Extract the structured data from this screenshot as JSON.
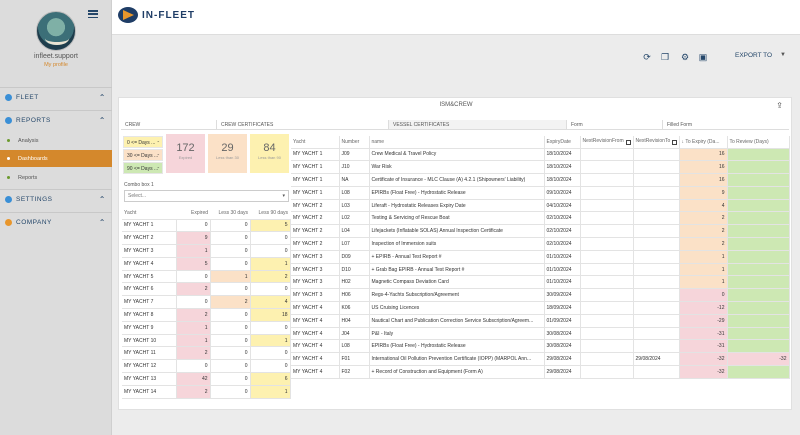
{
  "user": {
    "name": "infleet.support",
    "role": "My profile"
  },
  "app": {
    "title": "IN-FLEET"
  },
  "sidebar": [
    {
      "label": "FLEET",
      "color": "#3a8fd6"
    },
    {
      "label": "REPORTS",
      "color": "#3a8fd6"
    },
    {
      "label": "Analysis",
      "child": true
    },
    {
      "label": "Dashboards",
      "child": true,
      "active": true
    },
    {
      "label": "Reports",
      "child": true
    },
    {
      "label": "SETTINGS",
      "color": "#3a8fd6"
    },
    {
      "label": "COMPANY",
      "color": "#e8962c"
    }
  ],
  "toolbar": {
    "export_label": "EXPORT TO"
  },
  "panel": {
    "title": "ISM&CREW"
  },
  "tabs": [
    "CREW",
    "CREW CERTIFICATES",
    "VESSEL CERTIFICATES",
    "Form",
    "Filled Form"
  ],
  "filters": [
    "0 <= Days ...",
    "30 <= Days ...",
    "90 <= Days ..."
  ],
  "kpis": [
    {
      "value": "172",
      "label": "Expired"
    },
    {
      "value": "29",
      "label": "Less than 30"
    },
    {
      "value": "84",
      "label": "Less than 90"
    }
  ],
  "combo": {
    "label": "Combo box 1",
    "placeholder": "Select..."
  },
  "summary": {
    "headers": [
      "Yacht",
      "Expired",
      "Less 30 days",
      "Less 90 days"
    ],
    "rows": [
      [
        "MY YACHT 1",
        "0",
        "0",
        "5"
      ],
      [
        "MY YACHT 2",
        "9",
        "0",
        "0"
      ],
      [
        "MY YACHT 3",
        "1",
        "0",
        "0"
      ],
      [
        "MY YACHT 4",
        "5",
        "0",
        "1"
      ],
      [
        "MY YACHT 5",
        "0",
        "1",
        "2"
      ],
      [
        "MY YACHT 6",
        "2",
        "0",
        "0"
      ],
      [
        "MY YACHT 7",
        "0",
        "2",
        "4"
      ],
      [
        "MY YACHT 8",
        "2",
        "0",
        "18"
      ],
      [
        "MY YACHT 9",
        "1",
        "0",
        "0"
      ],
      [
        "MY YACHT 10",
        "1",
        "0",
        "1"
      ],
      [
        "MY YACHT 11",
        "2",
        "0",
        "0"
      ],
      [
        "MY YACHT 12",
        "0",
        "0",
        "0"
      ],
      [
        "MY YACHT 13",
        "42",
        "0",
        "6"
      ],
      [
        "MY YACHT 14",
        "2",
        "0",
        "1"
      ]
    ]
  },
  "certs": {
    "headers": [
      "Yacht",
      "Number",
      "name",
      "ExpiryDate",
      "NextRevisionFrom",
      "NextRevisionTo",
      "To Expiry (Da...",
      "To Review (Days)"
    ],
    "rows": [
      [
        "MY YACHT 1",
        "J09",
        "Crew Medical & Travel Policy",
        "18/10/2024",
        "",
        "",
        "16",
        ""
      ],
      [
        "MY YACHT 1",
        "J10",
        "War Risk",
        "18/10/2024",
        "",
        "",
        "16",
        ""
      ],
      [
        "MY YACHT 1",
        "NA",
        "Certificate of Insurance - MLC Clause (A) 4.2.1 (Shipowners' Liability)",
        "18/10/2024",
        "",
        "",
        "16",
        ""
      ],
      [
        "MY YACHT 1",
        "L08",
        "EPIRBs (Float Free) - Hydrostatic Release",
        "09/10/2024",
        "",
        "",
        "9",
        ""
      ],
      [
        "MY YACHT 2",
        "L03",
        "Liferaft - Hydrostatic Releases Expiry Date",
        "04/10/2024",
        "",
        "",
        "4",
        ""
      ],
      [
        "MY YACHT 2",
        "L02",
        "Testing & Servicing of Rescue Boat",
        "02/10/2024",
        "",
        "",
        "2",
        ""
      ],
      [
        "MY YACHT 2",
        "L04",
        "Lifejackets (Inflatable SOLAS) Annual Inspection Certificate",
        "02/10/2024",
        "",
        "",
        "2",
        ""
      ],
      [
        "MY YACHT 2",
        "L07",
        "Inspection of Immersion suits",
        "02/10/2024",
        "",
        "",
        "2",
        ""
      ],
      [
        "MY YACHT 3",
        "D09",
        "+ EPIRB - Annual Test Report #",
        "01/10/2024",
        "",
        "",
        "1",
        ""
      ],
      [
        "MY YACHT 3",
        "D10",
        "+ Grab Bag EPIRB - Annual Test Report #",
        "01/10/2024",
        "",
        "",
        "1",
        ""
      ],
      [
        "MY YACHT 3",
        "H02",
        "Magnetic Compass Deviation Card",
        "01/10/2024",
        "",
        "",
        "1",
        ""
      ],
      [
        "MY YACHT 3",
        "H06",
        "Regs-4-Yachts Subscription/Agreement",
        "30/09/2024",
        "",
        "",
        "0",
        ""
      ],
      [
        "MY YACHT 4",
        "K06",
        "US Cruising Licences",
        "18/09/2024",
        "",
        "",
        "-12",
        ""
      ],
      [
        "MY YACHT 4",
        "H04",
        "Nautical Chart and Publication Correction Service Subscription/Agreem...",
        "01/09/2024",
        "",
        "",
        "-29",
        ""
      ],
      [
        "MY YACHT 4",
        "J04",
        "P&I - Italy",
        "30/08/2024",
        "",
        "",
        "-31",
        ""
      ],
      [
        "MY YACHT 4",
        "L08",
        "EPIRBs (Float Free) - Hydrostatic Release",
        "30/08/2024",
        "",
        "",
        "-31",
        ""
      ],
      [
        "MY YACHT 4",
        "F01",
        "International Oil Pollution Prevention Certificate (IOPP) (MARPOL Ann...",
        "29/08/2024",
        "",
        "29/08/2024",
        "-32",
        "-32"
      ],
      [
        "MY YACHT 4",
        "F02",
        "+ Record of Construction and Equipment (Form A)",
        "29/08/2024",
        "",
        "",
        "-32",
        ""
      ]
    ]
  },
  "colors": {
    "expiry_positive": "#fbe1c7",
    "expiry_negative": "#f6d5da",
    "review_ok": "#cde8b3",
    "accent": "#d4882c"
  }
}
